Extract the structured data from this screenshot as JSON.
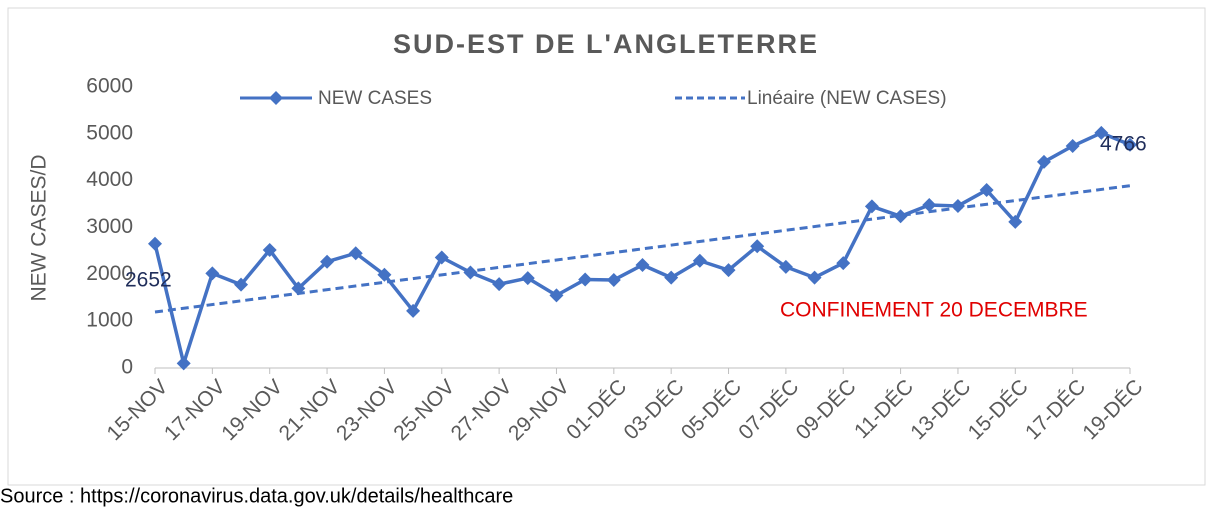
{
  "chart_data": {
    "type": "line",
    "title": "SUD-EST DE L'ANGLETERRE",
    "y_label": "NEW CASES/D",
    "categories": [
      "15-NOV",
      null,
      "17-NOV",
      null,
      "19-NOV",
      null,
      "21-NOV",
      null,
      "23-NOV",
      null,
      "25-NOV",
      null,
      "27-NOV",
      null,
      "29-NOV",
      null,
      "01-DÉC",
      null,
      "03-DÉC",
      null,
      "05-DÉC",
      null,
      "07-DÉC",
      null,
      "09-DÉC",
      null,
      "11-DÉC",
      null,
      "13-DÉC",
      null,
      "15-DÉC",
      null,
      "17-DÉC",
      null,
      "19-DÉC"
    ],
    "series": [
      {
        "name": "NEW CASES",
        "color": "#4472c4",
        "values": [
          2652,
          100,
          2020,
          1780,
          2520,
          1700,
          2270,
          2450,
          1990,
          1220,
          2360,
          2040,
          1790,
          1920,
          1550,
          1890,
          1880,
          2200,
          1930,
          2290,
          2090,
          2600,
          2160,
          1930,
          2240,
          3450,
          3240,
          3480,
          3460,
          3800,
          3120,
          4400,
          4740,
          5020,
          4766
        ],
        "value_labels": [
          "2652",
          null,
          null,
          null,
          null,
          null,
          null,
          null,
          null,
          null,
          null,
          null,
          null,
          null,
          null,
          null,
          null,
          null,
          null,
          null,
          null,
          null,
          null,
          null,
          null,
          null,
          null,
          null,
          null,
          null,
          null,
          null,
          null,
          null,
          "4766"
        ]
      }
    ],
    "trendline": {
      "name": "Linéaire (NEW CASES)",
      "color": "#4472c4"
    },
    "annotation": "CONFINEMENT 20 DECEMBRE",
    "source": "Source : https://coronavirus.data.gov.uk/details/healthcare",
    "ylim": [
      0,
      6000
    ],
    "yticks": [
      0,
      1000,
      2000,
      3000,
      4000,
      5000,
      6000
    ],
    "grid": false
  }
}
